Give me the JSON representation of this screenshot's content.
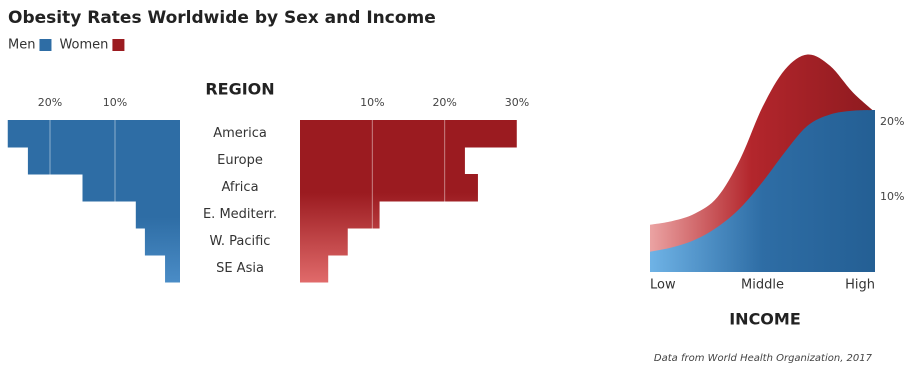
{
  "title": "Obesity Rates Worldwide by Sex and Income",
  "source": "Data from World Health Organization, 2017",
  "chart_data": [
    {
      "type": "bar",
      "orientation": "horizontal",
      "axis_label": "REGION",
      "categories": [
        "America",
        "Europe",
        "Africa",
        "E. Mediterr.",
        "W. Pacific",
        "SE Asia"
      ],
      "series": [
        {
          "name": "Men",
          "color": "#2e6da5",
          "values": [
            26.5,
            23.4,
            15,
            6.8,
            5.4,
            2.3
          ]
        },
        {
          "name": "Women",
          "color": "#9b1b20",
          "values": [
            30,
            22.8,
            24.6,
            11,
            6.6,
            3.9
          ]
        }
      ],
      "xlim": [
        0,
        30
      ],
      "xticks": [
        {
          "value": 10,
          "label": "10%"
        },
        {
          "value": 20,
          "label": "20%"
        },
        {
          "value": 30,
          "label": "30%"
        }
      ],
      "grid": true
    },
    {
      "type": "area",
      "axis_label": "INCOME",
      "x": [
        0,
        1,
        2,
        3,
        4,
        5,
        6,
        7,
        8,
        9,
        10
      ],
      "xlim": [
        0,
        10
      ],
      "xticks": [
        {
          "value": 0,
          "label": "Low"
        },
        {
          "value": 5,
          "label": "Middle"
        },
        {
          "value": 10,
          "label": "High"
        }
      ],
      "series": [
        {
          "name": "Women",
          "color": "#9b1b20",
          "values": [
            6.3,
            6.8,
            7.8,
            10,
            15,
            22,
            27,
            29,
            27.5,
            24,
            21.3
          ]
        },
        {
          "name": "Men",
          "color": "#2e6da5",
          "values": [
            2.7,
            3.3,
            4.3,
            6,
            8.5,
            12,
            16,
            19.5,
            21,
            21.5,
            21.6
          ]
        }
      ],
      "ylim": [
        0,
        30
      ],
      "yticks": [
        {
          "value": 10,
          "label": "10%"
        },
        {
          "value": 20,
          "label": "20%"
        }
      ]
    }
  ]
}
